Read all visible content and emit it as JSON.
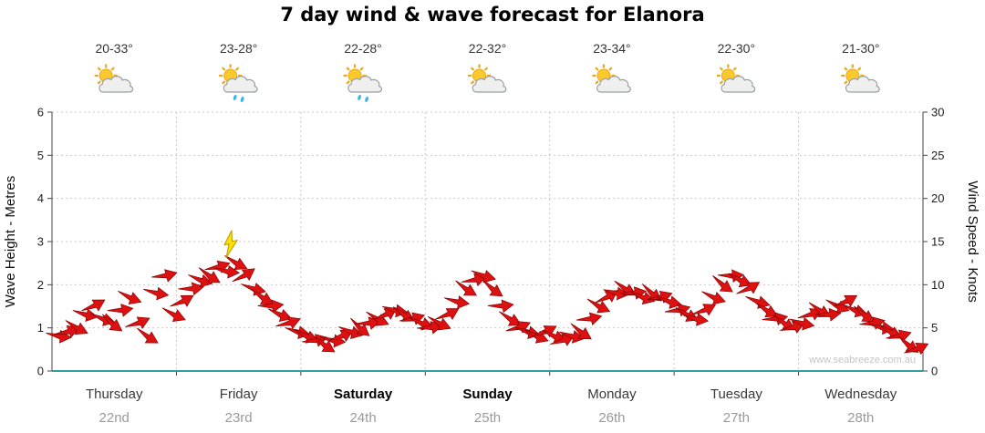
{
  "title": "7 day wind & wave forecast for Elanora",
  "watermark": "www.seabreeze.com.au",
  "y_axis": {
    "label": "Wave Height - Metres",
    "ticks": [
      0,
      1,
      2,
      3,
      4,
      5,
      6
    ]
  },
  "y2_axis": {
    "label": "Wind Speed - Knots",
    "ticks": [
      0,
      5,
      10,
      15,
      20,
      25,
      30
    ]
  },
  "days": [
    {
      "name": "Thursday",
      "date": "22nd",
      "temp": "20-33°",
      "weather": "partly-cloudy",
      "bold": false
    },
    {
      "name": "Friday",
      "date": "23rd",
      "temp": "23-28°",
      "weather": "showers",
      "bold": false
    },
    {
      "name": "Saturday",
      "date": "24th",
      "temp": "22-28°",
      "weather": "showers",
      "bold": true
    },
    {
      "name": "Sunday",
      "date": "25th",
      "temp": "22-32°",
      "weather": "partly-cloudy",
      "bold": true
    },
    {
      "name": "Monday",
      "date": "26th",
      "temp": "23-34°",
      "weather": "partly-cloudy",
      "bold": false
    },
    {
      "name": "Tuesday",
      "date": "27th",
      "temp": "22-30°",
      "weather": "partly-cloudy",
      "bold": false
    },
    {
      "name": "Wednesday",
      "date": "28th",
      "temp": "21-30°",
      "weather": "partly-cloudy",
      "bold": false
    }
  ],
  "chart_data": {
    "type": "wind-arrows",
    "title": "7 day wind & wave forecast for Elanora",
    "ylabel": "Wave Height - Metres",
    "y2label": "Wind Speed - Knots",
    "ylim": [
      0,
      6
    ],
    "y2lim": [
      0,
      30
    ],
    "units": "knots",
    "grid": true,
    "arrow_color": "#dd1111",
    "arrow_edge_color": "#8a0000",
    "baseline_color": "#2e9e9e",
    "storm_marker_index": 20,
    "wind_knots": [
      4,
      4.5,
      5,
      6.5,
      7.5,
      6,
      5.5,
      7,
      8.5,
      5.5,
      4,
      9,
      11,
      6.5,
      8,
      9.5,
      10.5,
      11,
      12,
      11.5,
      12.5,
      11,
      9.5,
      8.5,
      7.5,
      6.5,
      5.5,
      4.5,
      4,
      3.5,
      3,
      3.5,
      4,
      4.5,
      5,
      5.5,
      6,
      6.5,
      7,
      6.5,
      6,
      5.5,
      5,
      5.5,
      6.5,
      8,
      9.5,
      10.5,
      11,
      9.5,
      7.5,
      6,
      5,
      4.5,
      4,
      4.5,
      4,
      3.5,
      4,
      4.5,
      6,
      7.5,
      8.5,
      9,
      9.5,
      9,
      8.5,
      9,
      8.5,
      8,
      7,
      6.5,
      6,
      7,
      8.5,
      10,
      11,
      10.5,
      9.5,
      8,
      7,
      6,
      5.5,
      5,
      5.5,
      6.5,
      7,
      6.5,
      7.5,
      8,
      7,
      6.5,
      5.5,
      5,
      4.5,
      4,
      3,
      2.5
    ],
    "wind_angles": [
      5,
      -20,
      25,
      10,
      -30,
      15,
      35,
      -10,
      20,
      -25,
      30,
      8,
      -15,
      22,
      -30,
      -10,
      15,
      30,
      -20,
      5,
      25,
      -35,
      12,
      28,
      -8,
      18,
      -22,
      10,
      20,
      -15,
      32,
      6,
      -28,
      14,
      38,
      -12,
      24,
      -32,
      8,
      28,
      -18,
      16,
      -12,
      22,
      -30,
      8,
      30,
      -18,
      14,
      34,
      -8,
      26,
      -24,
      12,
      20,
      -28,
      18,
      -26,
      10,
      32,
      -14,
      24,
      -34,
      6,
      28,
      -10,
      16,
      36,
      -20,
      12,
      -16,
      24,
      8,
      -28,
      18,
      34,
      -6,
      22,
      -32,
      14,
      26,
      -12,
      30,
      -22,
      10,
      -24,
      28,
      -8,
      20,
      -30,
      16,
      32,
      -14,
      6,
      24,
      -18,
      34,
      -26
    ]
  }
}
